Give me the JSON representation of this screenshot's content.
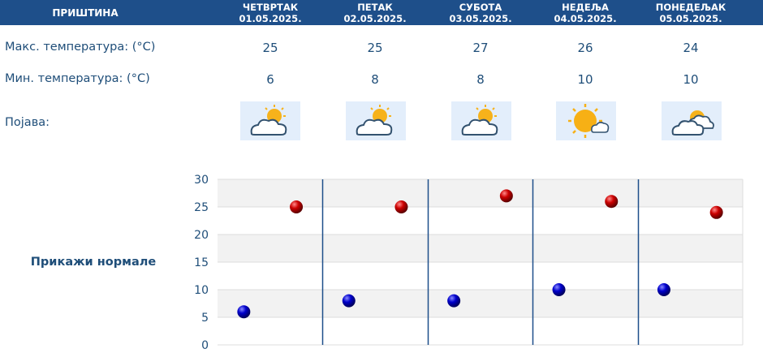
{
  "header": {
    "city": "ПРИШТИНА",
    "days": [
      {
        "name": "ЧЕТВРТАК",
        "date": "01.05.2025."
      },
      {
        "name": "ПЕТАК",
        "date": "02.05.2025."
      },
      {
        "name": "СУБОТА",
        "date": "03.05.2025."
      },
      {
        "name": "НЕДЕЉА",
        "date": "04.05.2025."
      },
      {
        "name": "ПОНЕДЕЉАК",
        "date": "05.05.2025."
      }
    ]
  },
  "rows": {
    "max_label": "Макс. температура: (°C)",
    "min_label": "Мин. температура: (°C)",
    "phenomenon_label": "Појава:",
    "max_values": [
      "25",
      "25",
      "27",
      "26",
      "24"
    ],
    "min_values": [
      "6",
      "8",
      "8",
      "10",
      "10"
    ],
    "icons": [
      "partly-cloudy-icon",
      "partly-cloudy-icon",
      "partly-cloudy-icon",
      "mostly-sunny-icon",
      "cloudy-sun-icon"
    ]
  },
  "normals_link": "Прикажи нормале",
  "colors": {
    "header_bg": "#1e4f8a",
    "text": "#1f4e79",
    "max_marker": "#cc0000",
    "min_marker": "#0000cc"
  },
  "chart_data": {
    "type": "scatter",
    "ylim": [
      0,
      30
    ],
    "y_ticks": [
      "0",
      "5",
      "10",
      "15",
      "20",
      "25",
      "30"
    ],
    "series": [
      {
        "values": [
          25,
          25,
          27,
          26,
          24
        ]
      },
      {
        "values": [
          6,
          8,
          8,
          10,
          10
        ]
      }
    ]
  }
}
